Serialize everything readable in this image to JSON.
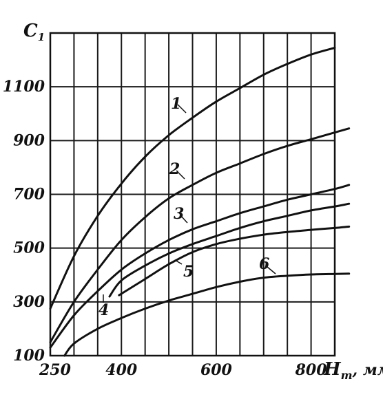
{
  "chart_data": {
    "type": "line",
    "ylabel": "C",
    "ylabel_sub": "1",
    "xlabel": "H",
    "xlabel_sub": "т",
    "xunit": ", мм",
    "xlim": [
      250,
      850
    ],
    "ylim": [
      100,
      1300
    ],
    "xticks": [
      250,
      400,
      600,
      800
    ],
    "xgrid": [
      300,
      350,
      400,
      450,
      500,
      550,
      600,
      650,
      700,
      750,
      800
    ],
    "yticks": [
      100,
      300,
      500,
      700,
      900,
      1100
    ],
    "ygrid": [
      300,
      500,
      700,
      900,
      1100
    ],
    "grid": true,
    "series": [
      {
        "name": "1",
        "x": [
          250,
          300,
          350,
          400,
          450,
          500,
          550,
          600,
          650,
          700,
          750,
          800,
          850
        ],
        "y": [
          275,
          470,
          620,
          740,
          840,
          920,
          985,
          1045,
          1095,
          1145,
          1185,
          1220,
          1245
        ]
      },
      {
        "name": "2",
        "x": [
          250,
          300,
          350,
          400,
          450,
          500,
          550,
          600,
          650,
          700,
          750,
          800,
          850,
          880
        ],
        "y": [
          150,
          300,
          420,
          530,
          615,
          685,
          735,
          780,
          815,
          850,
          880,
          905,
          930,
          945
        ]
      },
      {
        "name": "3",
        "x": [
          250,
          300,
          350,
          400,
          450,
          500,
          550,
          600,
          650,
          700,
          750,
          800,
          850,
          880
        ],
        "y": [
          130,
          250,
          340,
          420,
          480,
          530,
          570,
          600,
          630,
          655,
          680,
          700,
          720,
          735
        ]
      },
      {
        "name": "4",
        "x": [
          375,
          400,
          450,
          500,
          550,
          600,
          650,
          700,
          750,
          800,
          850,
          880
        ],
        "y": [
          320,
          380,
          435,
          480,
          515,
          545,
          575,
          600,
          620,
          640,
          655,
          665
        ]
      },
      {
        "name": "5",
        "x": [
          395,
          450,
          500,
          550,
          600,
          650,
          700,
          750,
          800,
          850,
          880
        ],
        "y": [
          325,
          385,
          440,
          485,
          515,
          535,
          550,
          560,
          568,
          575,
          580
        ]
      },
      {
        "name": "6",
        "x": [
          280,
          300,
          350,
          400,
          450,
          500,
          550,
          600,
          650,
          700,
          750,
          800,
          850,
          880
        ],
        "y": [
          100,
          145,
          200,
          240,
          275,
          305,
          330,
          355,
          375,
          390,
          397,
          402,
          404,
          405
        ]
      }
    ]
  }
}
